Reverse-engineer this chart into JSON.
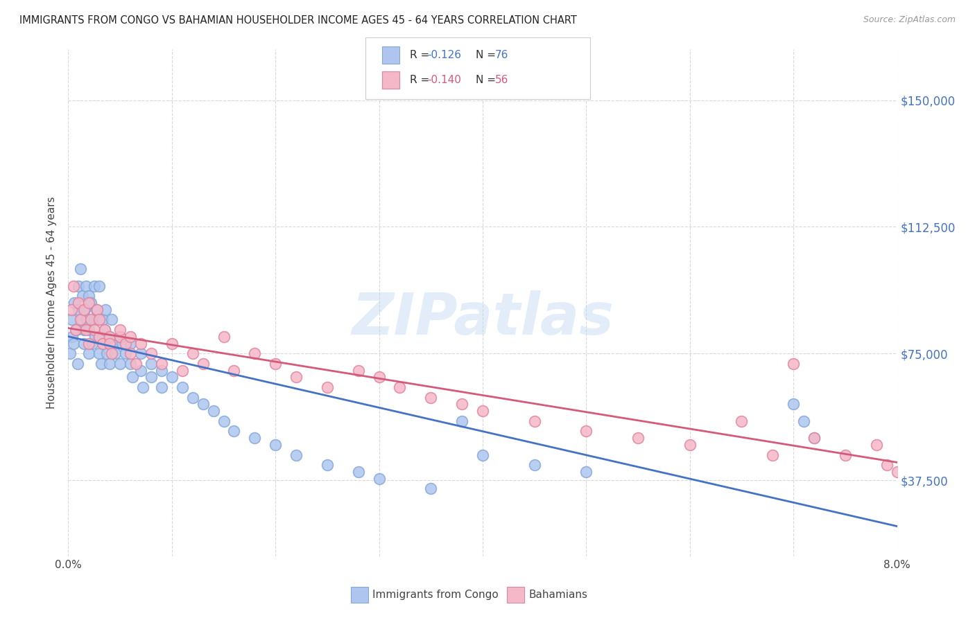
{
  "title": "IMMIGRANTS FROM CONGO VS BAHAMIAN HOUSEHOLDER INCOME AGES 45 - 64 YEARS CORRELATION CHART",
  "source": "Source: ZipAtlas.com",
  "ylabel": "Householder Income Ages 45 - 64 years",
  "xlim": [
    0.0,
    0.08
  ],
  "ylim": [
    15000,
    165000
  ],
  "yticks": [
    37500,
    75000,
    112500,
    150000
  ],
  "ytick_labels": [
    "$37,500",
    "$75,000",
    "$112,500",
    "$150,000"
  ],
  "xtick_vals": [
    0.0,
    0.01,
    0.02,
    0.03,
    0.04,
    0.05,
    0.06,
    0.07,
    0.08
  ],
  "xtick_labels": [
    "0.0%",
    "",
    "",
    "",
    "",
    "",
    "",
    "",
    "8.0%"
  ],
  "background_color": "#ffffff",
  "grid_color": "#d8d8d8",
  "congo_color": "#aec6ef",
  "congo_edge_color": "#85a8d8",
  "bahamas_color": "#f5b8c8",
  "bahamas_edge_color": "#e085a0",
  "congo_line_color": "#4472c4",
  "bahamas_line_color": "#d45a7a",
  "watermark": "ZIPatlas",
  "legend_label1": "Immigrants from Congo",
  "legend_label2": "Bahamians",
  "congo_x": [
    0.0002,
    0.0003,
    0.0004,
    0.0005,
    0.0006,
    0.0008,
    0.0009,
    0.001,
    0.001,
    0.0012,
    0.0013,
    0.0014,
    0.0015,
    0.0015,
    0.0016,
    0.0017,
    0.0018,
    0.002,
    0.002,
    0.002,
    0.0022,
    0.0023,
    0.0025,
    0.0025,
    0.0026,
    0.0027,
    0.0028,
    0.003,
    0.003,
    0.003,
    0.0032,
    0.0033,
    0.0034,
    0.0035,
    0.0036,
    0.0037,
    0.004,
    0.004,
    0.0042,
    0.0043,
    0.0045,
    0.005,
    0.005,
    0.0052,
    0.0055,
    0.006,
    0.006,
    0.0062,
    0.007,
    0.007,
    0.0072,
    0.008,
    0.008,
    0.009,
    0.009,
    0.01,
    0.011,
    0.012,
    0.013,
    0.014,
    0.015,
    0.016,
    0.018,
    0.02,
    0.022,
    0.025,
    0.028,
    0.03,
    0.035,
    0.038,
    0.04,
    0.045,
    0.05,
    0.07,
    0.071,
    0.072
  ],
  "congo_y": [
    75000,
    85000,
    80000,
    78000,
    90000,
    82000,
    72000,
    95000,
    88000,
    100000,
    85000,
    92000,
    78000,
    82000,
    88000,
    95000,
    85000,
    92000,
    75000,
    82000,
    90000,
    78000,
    85000,
    95000,
    80000,
    88000,
    85000,
    75000,
    80000,
    95000,
    72000,
    85000,
    78000,
    82000,
    88000,
    75000,
    80000,
    72000,
    85000,
    78000,
    75000,
    80000,
    72000,
    78000,
    75000,
    72000,
    78000,
    68000,
    70000,
    75000,
    65000,
    68000,
    72000,
    65000,
    70000,
    68000,
    65000,
    62000,
    60000,
    58000,
    55000,
    52000,
    50000,
    48000,
    45000,
    42000,
    40000,
    38000,
    35000,
    55000,
    45000,
    42000,
    40000,
    60000,
    55000,
    50000
  ],
  "bahamas_x": [
    0.0003,
    0.0005,
    0.0007,
    0.001,
    0.0012,
    0.0015,
    0.0017,
    0.002,
    0.002,
    0.0022,
    0.0025,
    0.0028,
    0.003,
    0.003,
    0.0033,
    0.0035,
    0.004,
    0.004,
    0.0042,
    0.005,
    0.005,
    0.0055,
    0.006,
    0.006,
    0.0065,
    0.007,
    0.008,
    0.009,
    0.01,
    0.011,
    0.012,
    0.013,
    0.015,
    0.016,
    0.018,
    0.02,
    0.022,
    0.025,
    0.028,
    0.03,
    0.032,
    0.035,
    0.038,
    0.04,
    0.045,
    0.05,
    0.055,
    0.06,
    0.065,
    0.068,
    0.07,
    0.072,
    0.075,
    0.078,
    0.079,
    0.08
  ],
  "bahamas_y": [
    88000,
    95000,
    82000,
    90000,
    85000,
    88000,
    82000,
    90000,
    78000,
    85000,
    82000,
    88000,
    80000,
    85000,
    78000,
    82000,
    80000,
    78000,
    75000,
    80000,
    82000,
    78000,
    75000,
    80000,
    72000,
    78000,
    75000,
    72000,
    78000,
    70000,
    75000,
    72000,
    80000,
    70000,
    75000,
    72000,
    68000,
    65000,
    70000,
    68000,
    65000,
    62000,
    60000,
    58000,
    55000,
    52000,
    50000,
    48000,
    55000,
    45000,
    72000,
    50000,
    45000,
    48000,
    42000,
    40000
  ]
}
